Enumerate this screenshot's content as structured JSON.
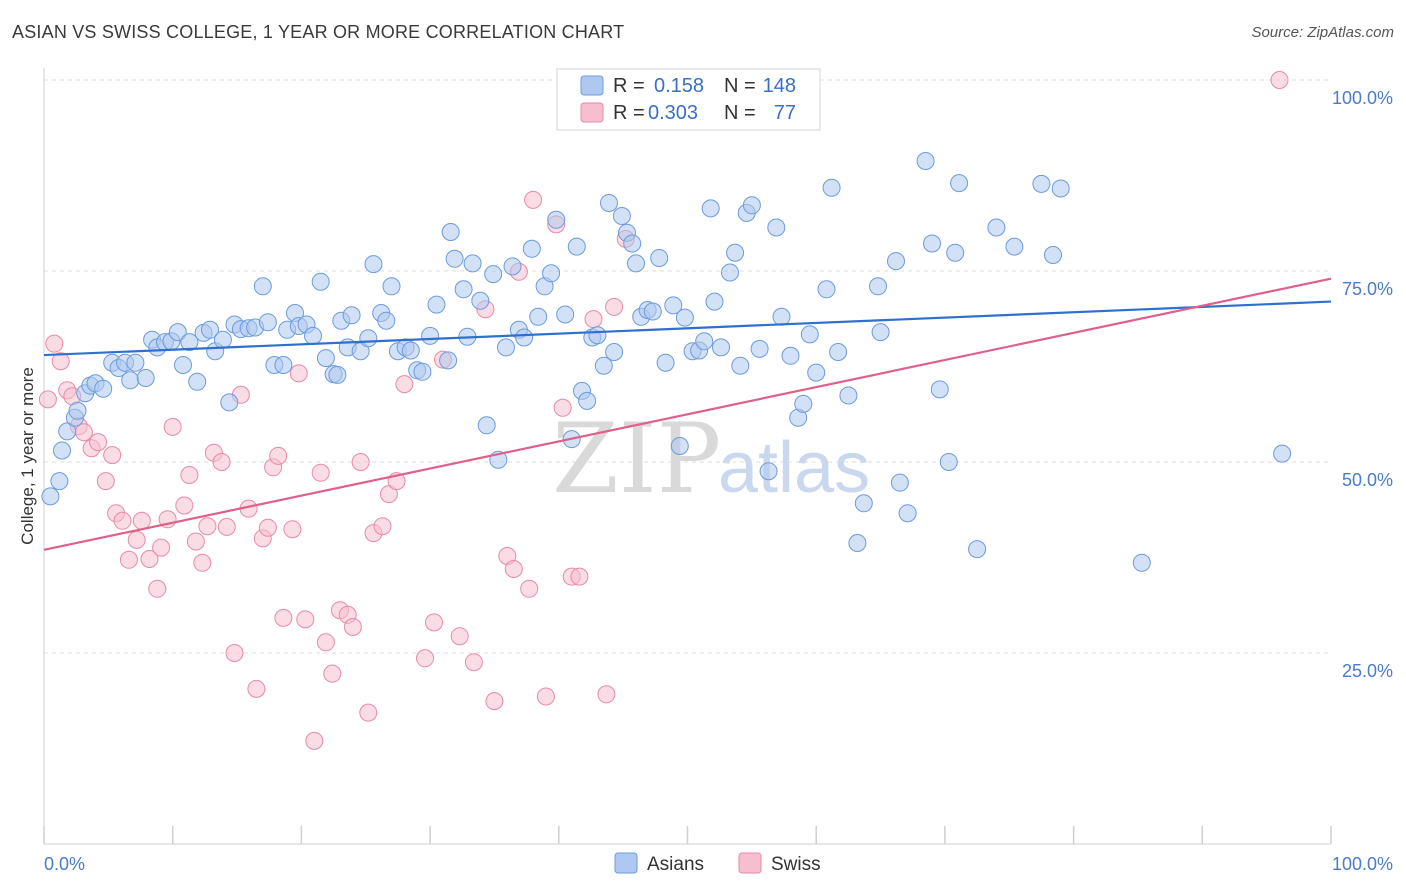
{
  "header": {
    "title": "ASIAN VS SWISS COLLEGE, 1 YEAR OR MORE CORRELATION CHART",
    "source": "Source: ZipAtlas.com"
  },
  "colors": {
    "asians_fill": "#aec8ef",
    "asians_stroke": "#6b9be0",
    "asians_line": "#2f6fd0",
    "swiss_fill": "#f6bfd0",
    "swiss_stroke": "#e98aa8",
    "swiss_line": "#e0608a",
    "grid": "#dcdcdc",
    "tick_text": "#4a7cc8"
  },
  "watermark": {
    "zip": "ZIP",
    "atlas": "atlas"
  },
  "legend": {
    "r_label": "R =",
    "n_label": "N =",
    "rows": [
      {
        "series": "Asians",
        "r": "0.158",
        "n": "148"
      },
      {
        "series": "Swiss",
        "r": "0.303",
        "n": "77"
      }
    ]
  },
  "chart_data": {
    "type": "scatter",
    "title": "ASIAN VS SWISS COLLEGE, 1 YEAR OR MORE CORRELATION CHART",
    "xlabel": "",
    "ylabel": "College, 1 year or more",
    "xlim": [
      0,
      100
    ],
    "ylim": [
      0,
      102
    ],
    "x_tick_labels": [
      "0.0%",
      "100.0%"
    ],
    "y_ticks": [
      25,
      50,
      75,
      100
    ],
    "y_tick_labels": [
      "25.0%",
      "50.0%",
      "75.0%",
      "100.0%"
    ],
    "grid": "horizontal dashed",
    "legend_placement": "top-center and bottom-center",
    "series": [
      {
        "name": "Asians",
        "trend": {
          "x": [
            0,
            100
          ],
          "y": [
            64.0,
            71.0
          ]
        },
        "points": [
          [
            0.5,
            45.5
          ],
          [
            1.2,
            47.5
          ],
          [
            1.4,
            51.5
          ],
          [
            1.8,
            54.0
          ],
          [
            2.4,
            55.8
          ],
          [
            2.6,
            56.7
          ],
          [
            3.2,
            59.0
          ],
          [
            3.6,
            60.0
          ],
          [
            4.0,
            60.3
          ],
          [
            4.6,
            59.6
          ],
          [
            5.3,
            63.0
          ],
          [
            5.8,
            62.3
          ],
          [
            6.3,
            63.0
          ],
          [
            6.7,
            60.7
          ],
          [
            7.1,
            63.0
          ],
          [
            7.9,
            61.0
          ],
          [
            8.4,
            66.0
          ],
          [
            8.8,
            65.0
          ],
          [
            9.4,
            65.7
          ],
          [
            9.9,
            65.8
          ],
          [
            10.4,
            67.0
          ],
          [
            10.8,
            62.7
          ],
          [
            11.3,
            65.7
          ],
          [
            11.9,
            60.5
          ],
          [
            12.4,
            66.9
          ],
          [
            12.9,
            67.3
          ],
          [
            13.3,
            64.5
          ],
          [
            13.9,
            66.0
          ],
          [
            14.4,
            57.8
          ],
          [
            14.8,
            68.0
          ],
          [
            15.3,
            67.4
          ],
          [
            15.9,
            67.5
          ],
          [
            16.4,
            67.6
          ],
          [
            17.0,
            73.0
          ],
          [
            17.4,
            68.3
          ],
          [
            17.9,
            62.7
          ],
          [
            18.6,
            62.7
          ],
          [
            18.9,
            67.3
          ],
          [
            19.5,
            69.5
          ],
          [
            19.8,
            67.8
          ],
          [
            20.4,
            68.0
          ],
          [
            20.9,
            66.5
          ],
          [
            21.5,
            73.6
          ],
          [
            21.9,
            63.6
          ],
          [
            22.5,
            61.5
          ],
          [
            23.1,
            68.5
          ],
          [
            23.6,
            65.0
          ],
          [
            23.9,
            69.2
          ],
          [
            24.6,
            64.5
          ],
          [
            25.2,
            66.2
          ],
          [
            25.6,
            75.9
          ],
          [
            26.2,
            69.5
          ],
          [
            26.6,
            68.5
          ],
          [
            27.0,
            73.0
          ],
          [
            27.5,
            64.5
          ],
          [
            28.1,
            65.0
          ],
          [
            28.5,
            64.6
          ],
          [
            29.0,
            62.0
          ],
          [
            29.4,
            61.8
          ],
          [
            30.0,
            66.5
          ],
          [
            30.5,
            70.6
          ],
          [
            31.4,
            63.3
          ],
          [
            31.6,
            80.1
          ],
          [
            31.9,
            76.6
          ],
          [
            32.6,
            72.6
          ],
          [
            32.9,
            66.4
          ],
          [
            33.3,
            76.0
          ],
          [
            33.9,
            71.1
          ],
          [
            34.4,
            54.8
          ],
          [
            34.9,
            74.6
          ],
          [
            35.3,
            50.3
          ],
          [
            35.9,
            65.0
          ],
          [
            36.4,
            75.6
          ],
          [
            36.9,
            67.3
          ],
          [
            37.3,
            66.3
          ],
          [
            37.9,
            77.9
          ],
          [
            38.4,
            69.0
          ],
          [
            38.9,
            73.0
          ],
          [
            39.4,
            74.7
          ],
          [
            39.8,
            81.7
          ],
          [
            40.5,
            69.3
          ],
          [
            41.0,
            53.0
          ],
          [
            41.4,
            78.2
          ],
          [
            41.8,
            59.3
          ],
          [
            42.2,
            58.0
          ],
          [
            42.6,
            66.3
          ],
          [
            43.0,
            66.6
          ],
          [
            43.5,
            62.6
          ],
          [
            43.9,
            83.9
          ],
          [
            44.3,
            64.4
          ],
          [
            44.9,
            82.2
          ],
          [
            45.3,
            80.0
          ],
          [
            45.7,
            78.6
          ],
          [
            46.0,
            76.0
          ],
          [
            46.4,
            69.0
          ],
          [
            46.9,
            69.9
          ],
          [
            47.3,
            69.7
          ],
          [
            47.8,
            76.7
          ],
          [
            48.3,
            63.0
          ],
          [
            48.9,
            70.5
          ],
          [
            49.4,
            52.1
          ],
          [
            49.8,
            68.9
          ],
          [
            50.4,
            64.5
          ],
          [
            50.9,
            64.6
          ],
          [
            51.3,
            65.8
          ],
          [
            51.8,
            83.2
          ],
          [
            52.1,
            71.0
          ],
          [
            52.6,
            65.0
          ],
          [
            53.3,
            74.8
          ],
          [
            53.7,
            77.4
          ],
          [
            54.1,
            62.6
          ],
          [
            54.6,
            82.6
          ],
          [
            55.0,
            83.6
          ],
          [
            55.6,
            64.8
          ],
          [
            56.3,
            48.8
          ],
          [
            56.9,
            80.7
          ],
          [
            57.3,
            69.0
          ],
          [
            58.0,
            63.9
          ],
          [
            58.6,
            55.8
          ],
          [
            59.0,
            57.6
          ],
          [
            59.5,
            66.7
          ],
          [
            60.0,
            61.7
          ],
          [
            60.8,
            72.6
          ],
          [
            61.2,
            85.9
          ],
          [
            61.7,
            64.4
          ],
          [
            62.5,
            58.7
          ],
          [
            63.2,
            39.4
          ],
          [
            63.7,
            44.6
          ],
          [
            64.8,
            73.0
          ],
          [
            65.0,
            67.0
          ],
          [
            66.2,
            76.3
          ],
          [
            66.5,
            47.3
          ],
          [
            67.1,
            43.3
          ],
          [
            68.5,
            89.4
          ],
          [
            69.0,
            78.6
          ],
          [
            69.6,
            59.5
          ],
          [
            70.3,
            50.0
          ],
          [
            70.8,
            77.4
          ],
          [
            71.1,
            86.5
          ],
          [
            72.5,
            38.6
          ],
          [
            74.0,
            80.7
          ],
          [
            75.4,
            78.2
          ],
          [
            77.5,
            86.4
          ],
          [
            78.4,
            77.1
          ],
          [
            79.0,
            85.8
          ],
          [
            85.3,
            36.8
          ],
          [
            96.2,
            51.1
          ],
          [
            22.8,
            61.4
          ]
        ]
      },
      {
        "name": "Swiss",
        "trend": {
          "x": [
            0,
            100
          ],
          "y": [
            38.5,
            74.0
          ]
        },
        "points": [
          [
            0.3,
            58.2
          ],
          [
            0.8,
            65.5
          ],
          [
            1.3,
            63.2
          ],
          [
            1.8,
            59.4
          ],
          [
            2.2,
            58.6
          ],
          [
            2.7,
            54.7
          ],
          [
            3.1,
            53.9
          ],
          [
            3.7,
            51.8
          ],
          [
            4.2,
            52.6
          ],
          [
            4.8,
            47.5
          ],
          [
            5.3,
            50.9
          ],
          [
            5.6,
            43.3
          ],
          [
            6.1,
            42.3
          ],
          [
            6.6,
            37.2
          ],
          [
            7.2,
            39.8
          ],
          [
            7.6,
            42.3
          ],
          [
            8.2,
            37.3
          ],
          [
            8.8,
            33.4
          ],
          [
            9.1,
            38.8
          ],
          [
            9.6,
            42.5
          ],
          [
            10.0,
            54.6
          ],
          [
            10.9,
            44.3
          ],
          [
            11.3,
            48.3
          ],
          [
            11.8,
            39.6
          ],
          [
            12.3,
            36.8
          ],
          [
            12.7,
            41.6
          ],
          [
            13.2,
            51.2
          ],
          [
            13.8,
            50.0
          ],
          [
            14.2,
            41.5
          ],
          [
            14.8,
            25.0
          ],
          [
            15.3,
            58.8
          ],
          [
            15.9,
            43.9
          ],
          [
            16.5,
            20.3
          ],
          [
            17.0,
            40.0
          ],
          [
            17.4,
            41.4
          ],
          [
            17.8,
            49.3
          ],
          [
            18.2,
            50.8
          ],
          [
            18.6,
            29.6
          ],
          [
            19.3,
            41.2
          ],
          [
            19.8,
            61.6
          ],
          [
            20.3,
            29.4
          ],
          [
            21.0,
            13.5
          ],
          [
            21.5,
            48.6
          ],
          [
            21.9,
            26.4
          ],
          [
            22.4,
            22.3
          ],
          [
            23.0,
            30.6
          ],
          [
            23.6,
            30.0
          ],
          [
            24.0,
            28.4
          ],
          [
            24.6,
            50.0
          ],
          [
            25.2,
            17.2
          ],
          [
            25.6,
            40.7
          ],
          [
            26.3,
            41.6
          ],
          [
            26.8,
            45.8
          ],
          [
            27.4,
            47.5
          ],
          [
            28.0,
            60.2
          ],
          [
            29.6,
            24.3
          ],
          [
            30.3,
            29.0
          ],
          [
            31.0,
            63.4
          ],
          [
            32.3,
            27.2
          ],
          [
            33.4,
            23.8
          ],
          [
            34.3,
            70.0
          ],
          [
            35.0,
            18.7
          ],
          [
            36.0,
            37.7
          ],
          [
            36.5,
            36.0
          ],
          [
            36.9,
            74.9
          ],
          [
            37.7,
            33.4
          ],
          [
            39.0,
            19.3
          ],
          [
            39.8,
            81.1
          ],
          [
            40.3,
            57.1
          ],
          [
            41.0,
            35.0
          ],
          [
            41.6,
            35.0
          ],
          [
            42.7,
            68.7
          ],
          [
            43.7,
            19.6
          ],
          [
            44.3,
            70.3
          ],
          [
            45.2,
            79.2
          ],
          [
            38.0,
            84.3
          ],
          [
            96.0,
            100.0
          ]
        ]
      }
    ]
  }
}
